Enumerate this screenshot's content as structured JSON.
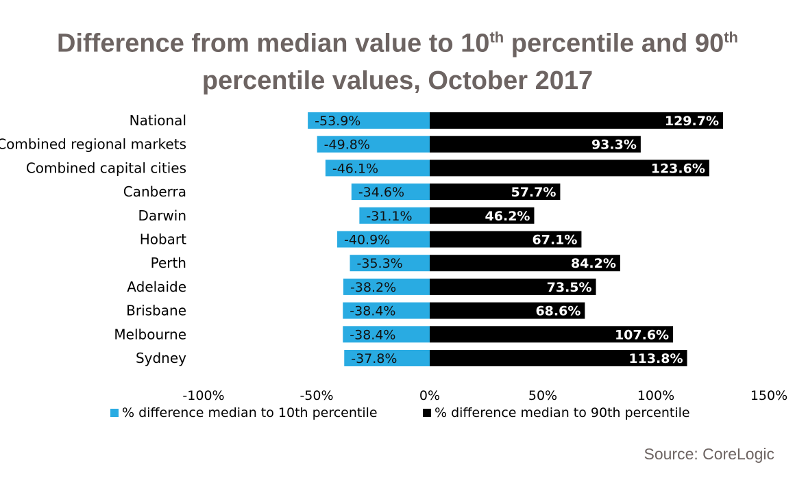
{
  "title": {
    "line1_text": "Difference from median value to 10",
    "line1_sup1": "th",
    "line1_mid": " percentile and 90",
    "line1_sup2": "th",
    "line2": "percentile values, October 2017"
  },
  "source": "Source: CoreLogic",
  "colors": {
    "low": "#29abe2",
    "high": "#000000",
    "text": "#000000",
    "title": "#6d6462"
  },
  "chart_data": {
    "type": "bar",
    "orientation": "horizontal",
    "categories": [
      "National",
      "Combined regional markets",
      "Combined capital cities",
      "Canberra",
      "Darwin",
      "Hobart",
      "Perth",
      "Adelaide",
      "Brisbane",
      "Melbourne",
      "Sydney"
    ],
    "series": [
      {
        "name": "% difference median to 10th percentile",
        "values": [
          -53.9,
          -49.8,
          -46.1,
          -34.6,
          -31.1,
          -40.9,
          -35.3,
          -38.2,
          -38.4,
          -38.4,
          -37.8
        ],
        "labels": [
          "-53.9%",
          "-49.8%",
          "-46.1%",
          "-34.6%",
          "-31.1%",
          "-40.9%",
          "-35.3%",
          "-38.2%",
          "-38.4%",
          "-38.4%",
          "-37.8%"
        ]
      },
      {
        "name": "% difference median to 90th percentile",
        "values": [
          129.7,
          93.3,
          123.6,
          57.7,
          46.2,
          67.1,
          84.2,
          73.5,
          68.6,
          107.6,
          113.8
        ],
        "labels": [
          "129.7%",
          "93.3%",
          "123.6%",
          "57.7%",
          "46.2%",
          "67.1%",
          "84.2%",
          "73.5%",
          "68.6%",
          "107.6%",
          "113.8%"
        ]
      }
    ],
    "xlim": [
      -100,
      150
    ],
    "xticks": [
      -100,
      -50,
      0,
      50,
      100,
      150
    ],
    "xtick_labels": [
      "-100%",
      "-50%",
      "0%",
      "50%",
      "100%",
      "150%"
    ],
    "legend_position": "bottom",
    "grid": false
  }
}
